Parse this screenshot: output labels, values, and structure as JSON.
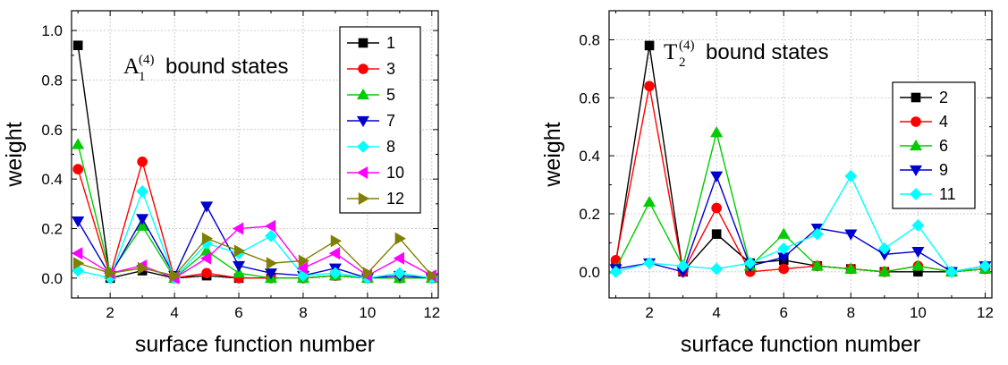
{
  "chart_data": [
    {
      "type": "line",
      "panel": "left",
      "annotation": {
        "base": "A",
        "sub": "1",
        "sup": "(4)",
        "rest": " bound states"
      },
      "xlabel": "surface function number",
      "ylabel": "weight",
      "xlim": [
        0.8,
        12.2
      ],
      "ylim": [
        -0.08,
        1.08
      ],
      "xticks": [
        2,
        4,
        6,
        8,
        10,
        12
      ],
      "yticks": [
        0.0,
        0.2,
        0.4,
        0.6,
        0.8,
        1.0
      ],
      "ytick_labels": [
        "0.0",
        "0.2",
        "0.4",
        "0.6",
        "0.8",
        "1.0"
      ],
      "grid": true,
      "legend_position": "top-right",
      "x": [
        1,
        2,
        3,
        4,
        5,
        6,
        7,
        8,
        9,
        10,
        11,
        12
      ],
      "series": [
        {
          "name": "1",
          "color": "#000000",
          "marker": "square",
          "values": [
            0.94,
            0.0,
            0.03,
            0.0,
            0.01,
            0.0,
            0.0,
            0.0,
            0.01,
            0.0,
            0.0,
            0.0
          ]
        },
        {
          "name": "3",
          "color": "#ff0000",
          "marker": "circle",
          "values": [
            0.44,
            0.01,
            0.47,
            0.0,
            0.02,
            0.0,
            0.0,
            0.0,
            0.01,
            0.0,
            0.0,
            0.0
          ]
        },
        {
          "name": "5",
          "color": "#00cc00",
          "marker": "triangle-up",
          "values": [
            0.54,
            0.02,
            0.21,
            0.0,
            0.11,
            0.02,
            0.0,
            0.0,
            0.01,
            0.0,
            0.0,
            0.0
          ]
        },
        {
          "name": "7",
          "color": "#0000cc",
          "marker": "triangle-down",
          "values": [
            0.23,
            0.01,
            0.24,
            0.01,
            0.29,
            0.05,
            0.02,
            0.01,
            0.04,
            0.0,
            0.01,
            0.0
          ]
        },
        {
          "name": "8",
          "color": "#00ffff",
          "marker": "diamond",
          "values": [
            0.03,
            0.0,
            0.35,
            0.0,
            0.14,
            0.1,
            0.17,
            0.01,
            0.02,
            0.0,
            0.02,
            0.0
          ]
        },
        {
          "name": "10",
          "color": "#ff00ff",
          "marker": "triangle-left",
          "values": [
            0.1,
            0.02,
            0.05,
            0.0,
            0.08,
            0.2,
            0.21,
            0.04,
            0.1,
            0.01,
            0.08,
            0.01
          ]
        },
        {
          "name": "12",
          "color": "#808000",
          "marker": "triangle-right",
          "values": [
            0.06,
            0.02,
            0.04,
            0.01,
            0.16,
            0.11,
            0.06,
            0.07,
            0.15,
            0.02,
            0.16,
            0.01
          ]
        }
      ]
    },
    {
      "type": "line",
      "panel": "right",
      "annotation": {
        "base": "T",
        "sub": "2",
        "sup": "(4)",
        "rest": " bound states"
      },
      "xlabel": "surface function number",
      "ylabel": "weight",
      "xlim": [
        0.8,
        12.2
      ],
      "ylim": [
        -0.09,
        0.9
      ],
      "xticks": [
        2,
        4,
        6,
        8,
        10,
        12
      ],
      "yticks": [
        0.0,
        0.2,
        0.4,
        0.6,
        0.8
      ],
      "ytick_labels": [
        "0.0",
        "0.2",
        "0.4",
        "0.6",
        "0.8"
      ],
      "grid": true,
      "legend_position": "right",
      "x": [
        1,
        2,
        3,
        4,
        5,
        6,
        7,
        8,
        9,
        10,
        11,
        12
      ],
      "series": [
        {
          "name": "2",
          "color": "#000000",
          "marker": "square",
          "values": [
            0.03,
            0.78,
            0.0,
            0.13,
            0.03,
            0.04,
            0.02,
            0.01,
            0.0,
            0.0,
            0.0,
            0.01
          ]
        },
        {
          "name": "4",
          "color": "#ff0000",
          "marker": "circle",
          "values": [
            0.04,
            0.64,
            0.0,
            0.22,
            0.0,
            0.01,
            0.02,
            0.01,
            0.0,
            0.02,
            0.0,
            0.01
          ]
        },
        {
          "name": "6",
          "color": "#00cc00",
          "marker": "triangle-up",
          "values": [
            0.01,
            0.24,
            0.02,
            0.48,
            0.02,
            0.13,
            0.02,
            0.01,
            0.0,
            0.02,
            0.0,
            0.01
          ]
        },
        {
          "name": "9",
          "color": "#0000cc",
          "marker": "triangle-down",
          "values": [
            0.01,
            0.03,
            0.0,
            0.33,
            0.02,
            0.05,
            0.15,
            0.13,
            0.06,
            0.07,
            0.0,
            0.02
          ]
        },
        {
          "name": "11",
          "color": "#00ffff",
          "marker": "diamond",
          "values": [
            0.0,
            0.03,
            0.02,
            0.01,
            0.03,
            0.08,
            0.13,
            0.33,
            0.08,
            0.16,
            0.0,
            0.02
          ]
        }
      ]
    }
  ]
}
